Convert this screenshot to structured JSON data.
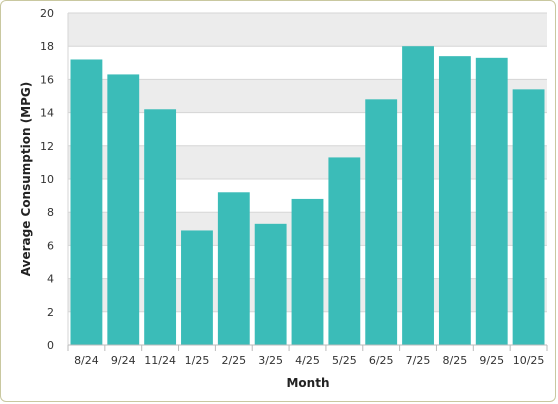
{
  "chart_data": {
    "type": "bar",
    "title": "",
    "xlabel": "Month",
    "ylabel": "Average Consumption (MPG)",
    "categories": [
      "8/24",
      "9/24",
      "11/24",
      "1/25",
      "2/25",
      "3/25",
      "4/25",
      "5/25",
      "6/25",
      "7/25",
      "8/25",
      "9/25",
      "10/25"
    ],
    "values": [
      17.2,
      16.3,
      14.2,
      6.9,
      9.2,
      7.3,
      8.8,
      11.3,
      14.8,
      18.0,
      17.4,
      17.3,
      15.4
    ],
    "ylim": [
      0,
      20
    ],
    "yticks": [
      0,
      2,
      4,
      6,
      8,
      10,
      12,
      14,
      16,
      18,
      20
    ],
    "grid": true,
    "legend": "none",
    "colors": {
      "bar": "#3bbcb8",
      "band": "#ececec",
      "grid": "#d6d6d6"
    }
  }
}
